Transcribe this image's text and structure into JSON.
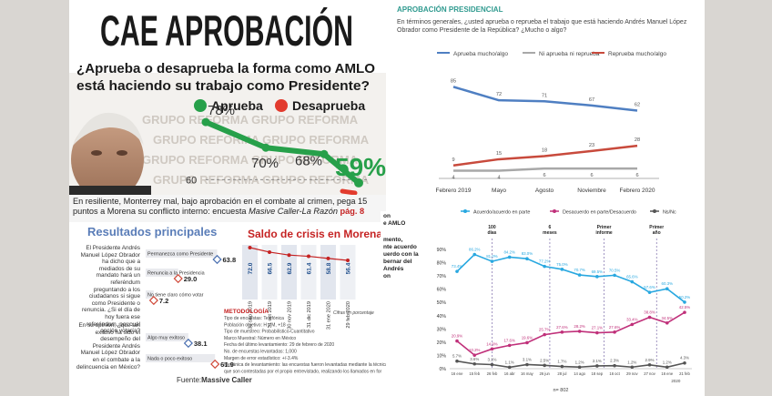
{
  "colors": {
    "approve_green": "#27a04a",
    "disapprove_red": "#e23b2e",
    "blue_line": "#4f7fc2",
    "gray_line": "#a8a8a8",
    "red_line": "#c84a3c",
    "teal_accent": "#2f9a8f",
    "cyan_line": "#29a8e0",
    "magenta_line": "#c0307a",
    "dark_line": "#555555",
    "morena_blue": "#1f4e8c"
  },
  "panel_a": {
    "headline": "CAE APROBACIÓN",
    "question_line1": "¿Aprueba o desaprueba la forma como AMLO",
    "question_line2": "está haciendo su trabajo como Presidente?",
    "legend_approve": "Aprueba",
    "legend_disapprove": "Desaprueba",
    "watermark": "GRUPO REFORMA",
    "strip_text_line1": "En resiliente, Monterrey mal, bajo aprobación en el combate al crimen, pega 15",
    "strip_text_line2": "puntos a Morena su conflicto interno: encuesta",
    "strip_text_italic": "Masive Caller-La Razón",
    "strip_text_page": "pág. 8"
  },
  "panel_b": {
    "title": "Resultados principales",
    "q1_text": "El Presidente Andrés Manuel López Obrador ha dicho que a mediados de su mandato hará un referéndum preguntando a los ciudadanos si sigue como Presidente o renuncia. ¿Si el día de hoy fuera ese referéndum, por cuál opción votaría?",
    "q2_text": "En su opinión, ¿qué tan exitoso ha sido el desempeño del Presidente Andrés Manuel López Obrador en el combate a la delincuencia en México?",
    "source_label": "Fuente:",
    "source_name": "Massive Caller",
    "morena_title": "Saldo de crisis en Morena",
    "morena_unit": "Cifras en porcentaje",
    "method_title": "METODOLOGÍA",
    "method_lines": [
      "Tipo de encuestas: Telefónica",
      "Población objetivo: H y M, +18",
      "Tipo de muestreo: Probabilístico-Cuantitativo",
      "Marco Muestral: Número en México",
      "Fecha del último levantamiento: 29 de febrero de 2020",
      "No. de encuestas levantadas: 1,000",
      "Margen de error estadístico: +/-3.4%",
      "Mecánica de levantamiento: las encuestas fueron levantadas mediante la técnica de \"robot\" en grabaciones previas a las llamadas",
      "que son contestadas por el propio entrevistado, realizando los llamados en forma aleatoria a fin de que sean representativas"
    ]
  },
  "panel_c": {
    "title": "APROBACIÓN PRESIDENCIAL",
    "question": "En términos generales, ¿usted aprueba o reprueba el trabajo que está haciendo Andrés Manuel López Obrador como Presidente de la República? ¿Mucho o algo?"
  },
  "panel_d": {
    "footer": "n= 802",
    "markers": [
      "100 días",
      "6 meses",
      "Primer informe",
      "Primer año"
    ],
    "snippet_lines": [
      "on",
      "e AMLO",
      "mento,",
      "nte acuerdo",
      "uerdo con la",
      "bernar del",
      "Andrés",
      "on"
    ]
  },
  "chart_data": [
    {
      "type": "line",
      "title": "",
      "categories": [
        "",
        "",
        "",
        ""
      ],
      "series": [
        {
          "name": "Aprueba",
          "values": [
            78,
            70,
            68,
            59
          ]
        }
      ],
      "y_tick": "60",
      "ylim": [
        55,
        82
      ]
    },
    {
      "type": "bar",
      "title": "",
      "groups": [
        {
          "bars": [
            {
              "label": "Permanezca como Presidente",
              "value": 63.8
            },
            {
              "label": "Renuncia a la Presidencia",
              "value": 29.0
            },
            {
              "label": "No tiene claro cómo votar",
              "value": 7.2
            }
          ]
        },
        {
          "bars": [
            {
              "label": "Algo muy exitoso",
              "value": 38.1
            },
            {
              "label": "Nada o poco exitoso",
              "value": 61.9
            }
          ]
        }
      ]
    },
    {
      "type": "bar",
      "title": "Saldo de crisis en Morena",
      "categories": [
        "30 sep 2019",
        "31 oct 2019",
        "30 nov 2019",
        "31 dic 2019",
        "31 ene 2020",
        "29 feb 2020"
      ],
      "values": [
        72.0,
        66.5,
        62.9,
        61.4,
        58.8,
        56.4
      ],
      "ylabel": "Cifras en porcentaje"
    },
    {
      "type": "line",
      "title": "APROBACIÓN PRESIDENCIAL",
      "categories": [
        "Febrero 2019",
        "Mayo",
        "Agosto",
        "Noviembre",
        "Febrero 2020"
      ],
      "legend": [
        "Aprueba mucho/algo",
        "Ni aprueba ni reprueba",
        "Reprueba mucho/algo"
      ],
      "legend_position": "top",
      "series": [
        {
          "name": "Aprueba mucho/algo",
          "values": [
            85,
            72,
            71,
            67,
            62
          ]
        },
        {
          "name": "Ni aprueba ni reprueba",
          "values": [
            4,
            4,
            6,
            6,
            6
          ]
        },
        {
          "name": "Reprueba mucho/algo",
          "values": [
            9,
            15,
            18,
            23,
            28
          ]
        }
      ],
      "ylim": [
        0,
        95
      ]
    },
    {
      "type": "line",
      "title": "",
      "legend": [
        "Acuerdo/acuerdo en parte",
        "Desacuerdo en parte/Desacuerdo",
        "Ns/Nc"
      ],
      "legend_position": "top",
      "yticks": [
        "90%",
        "80%",
        "70%",
        "60%",
        "50%",
        "40%",
        "30%",
        "20%",
        "10%",
        "0%"
      ],
      "xticks": [
        "16 ene",
        "15 feb",
        "26 feb",
        "16 abr",
        "16 may",
        "26 jun",
        "28 jul",
        "14 ago",
        "18 sep",
        "16 oct",
        "29 nov",
        "27 nov",
        "16 ene",
        "21 feb"
      ],
      "year_label": "2020",
      "series": [
        {
          "name": "Acuerdo/acuerdo en parte",
          "values": [
            73.4,
            86.2,
            81.0,
            84.2,
            83.0,
            77.2,
            75.0,
            70.7,
            69.5,
            70.5,
            65.6,
            57.6,
            60.3,
            50.2
          ],
          "labels": [
            "73.4%",
            "86.2%",
            "81.0%",
            "84.2%",
            "83.0%",
            "77.2%",
            "75.0%",
            "70.7%",
            "69.5%",
            "70.5%",
            "65.6%",
            "57.6%",
            "60.3%",
            "50.2%"
          ]
        },
        {
          "name": "Desacuerdo en parte/Desacuerdo",
          "values": [
            20.9,
            10.2,
            14.9,
            17.6,
            19.6,
            25.7,
            27.6,
            28.2,
            27.1,
            27.6,
            33.4,
            38.8,
            34.5,
            42.5
          ],
          "labels": [
            "20.9%",
            "10.2%",
            "14.9%",
            "17.6%",
            "19.6%",
            "25.7%",
            "27.6%",
            "28.2%",
            "27.1%",
            "27.6%",
            "33.4%",
            "38.8%",
            "34.5%",
            "42.5%"
          ]
        },
        {
          "name": "Ns/Nc",
          "values": [
            5.7,
            3.6,
            3.1,
            1.1,
            3.1,
            2.5,
            1.7,
            1.2,
            2.1,
            2.3,
            1.2,
            2.9,
            1.2,
            4.3
          ],
          "labels": [
            "5.7%",
            "3.6%",
            "3.1%",
            "1.1%",
            "3.1%",
            "2.5%",
            "1.7%",
            "1.2%",
            "2.1%",
            "2.3%",
            "1.2%",
            "2.9%",
            "1.2%",
            "4.3%"
          ]
        }
      ],
      "ylim": [
        0,
        90
      ]
    }
  ]
}
